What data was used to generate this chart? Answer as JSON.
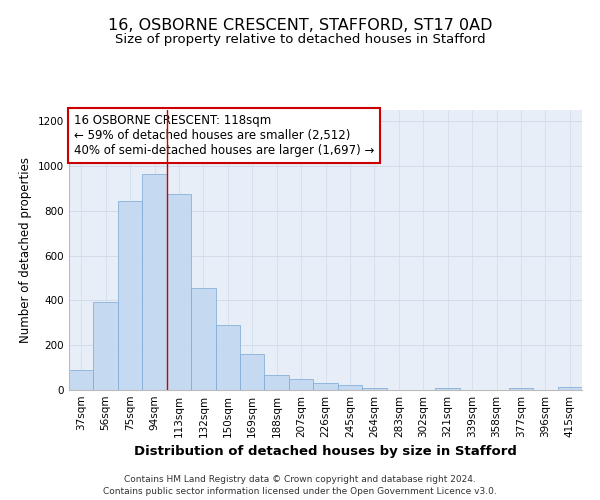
{
  "title_line1": "16, OSBORNE CRESCENT, STAFFORD, ST17 0AD",
  "title_line2": "Size of property relative to detached houses in Stafford",
  "xlabel": "Distribution of detached houses by size in Stafford",
  "ylabel": "Number of detached properties",
  "categories": [
    "37sqm",
    "56sqm",
    "75sqm",
    "94sqm",
    "113sqm",
    "132sqm",
    "150sqm",
    "169sqm",
    "188sqm",
    "207sqm",
    "226sqm",
    "245sqm",
    "264sqm",
    "283sqm",
    "302sqm",
    "321sqm",
    "339sqm",
    "358sqm",
    "377sqm",
    "396sqm",
    "415sqm"
  ],
  "values": [
    90,
    395,
    845,
    965,
    875,
    455,
    290,
    160,
    68,
    50,
    30,
    22,
    10,
    0,
    0,
    10,
    0,
    0,
    10,
    0,
    15
  ],
  "bar_color": "#c5d9f0",
  "bar_edge_color": "#7aa8d4",
  "grid_color": "#d0dcea",
  "background_color": "#e8eef8",
  "vline_x_index": 4,
  "vline_color": "#cc0000",
  "annotation_box_text": "16 OSBORNE CRESCENT: 118sqm\n← 59% of detached houses are smaller (2,512)\n40% of semi-detached houses are larger (1,697) →",
  "annotation_box_color": "#cc0000",
  "ylim": [
    0,
    1250
  ],
  "yticks": [
    0,
    200,
    400,
    600,
    800,
    1000,
    1200
  ],
  "footer_line1": "Contains HM Land Registry data © Crown copyright and database right 2024.",
  "footer_line2": "Contains public sector information licensed under the Open Government Licence v3.0.",
  "title_fontsize": 11.5,
  "subtitle_fontsize": 9.5,
  "ylabel_fontsize": 8.5,
  "xlabel_fontsize": 9.5,
  "tick_fontsize": 7.5,
  "annotation_fontsize": 8.5,
  "footer_fontsize": 6.5
}
